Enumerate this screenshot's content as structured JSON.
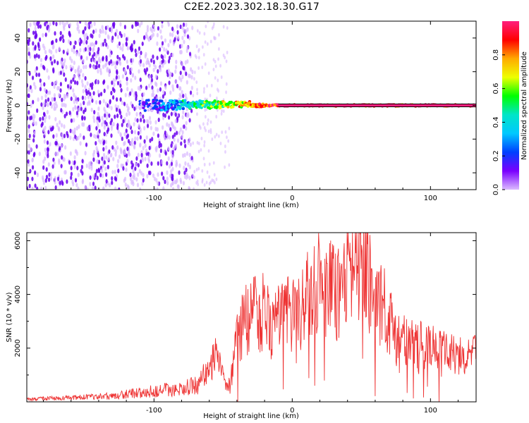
{
  "title": "C2E2.2023.302.18.30.G17",
  "colors": {
    "snr_line": "#ee3333",
    "scatter_dense": "#6a00ee",
    "scatter_light": "#d9b8ff",
    "colorbar_stops": [
      "#ff1e7d",
      "#ff0000",
      "#ffaa00",
      "#eeff00",
      "#00ff00",
      "#00e5c8",
      "#00c8ff",
      "#0040ff",
      "#7a00ff",
      "#dcbcff"
    ]
  },
  "chart_data": [
    {
      "type": "heatmap",
      "title": "C2E2.2023.302.18.30.G17",
      "xlabel": "Height of straight line (km)",
      "ylabel": "Frequency (Hz)",
      "xlim": [
        -192,
        133
      ],
      "ylim": [
        -50,
        50
      ],
      "x_ticks": [
        -100,
        0,
        100
      ],
      "y_ticks": [
        -40,
        -20,
        0,
        20,
        40
      ],
      "colorbar": {
        "label": "Normalized spectral amplitude",
        "range": [
          0,
          1
        ],
        "ticks": [
          0.0,
          0.2,
          0.4,
          0.6,
          0.8
        ]
      },
      "features": {
        "noise_region_x": [
          -192,
          -72
        ],
        "faint_scatter_x": [
          -72,
          -45
        ],
        "signal_line_frequency_hz": 0,
        "signal_emergence_x": -110,
        "signal_peak_x_range": [
          -10,
          133
        ],
        "signal_peak_amplitude": 0.95
      }
    },
    {
      "type": "line",
      "xlabel": "Height of straight line (km)",
      "ylabel": "SNR (10 * v/v)",
      "xlim": [
        -192,
        133
      ],
      "ylim": [
        0,
        6300
      ],
      "x_ticks": [
        -100,
        0,
        100
      ],
      "y_ticks": [
        2000,
        4000,
        6000
      ],
      "series": [
        {
          "x": [
            -192,
            -160,
            -130,
            -110,
            -90,
            -75,
            -68,
            -60,
            -55,
            -50,
            -45,
            -40,
            -35,
            -30,
            -25,
            -20,
            -15,
            -10,
            -5,
            0,
            5,
            10,
            15,
            20,
            25,
            30,
            35,
            40,
            45,
            50,
            55,
            58,
            62,
            66,
            70,
            75,
            80,
            85,
            90,
            100,
            110,
            120,
            133
          ],
          "values": [
            100,
            150,
            220,
            350,
            450,
            550,
            700,
            1300,
            1700,
            900,
            600,
            2400,
            3000,
            3200,
            3300,
            3400,
            2800,
            3100,
            3300,
            3200,
            3300,
            3800,
            4300,
            4700,
            4200,
            4300,
            3800,
            4600,
            5100,
            5300,
            5000,
            3300,
            3800,
            3500,
            3200,
            2200,
            2600,
            2200,
            2100,
            2000,
            1900,
            1700,
            1800
          ]
        }
      ]
    }
  ]
}
